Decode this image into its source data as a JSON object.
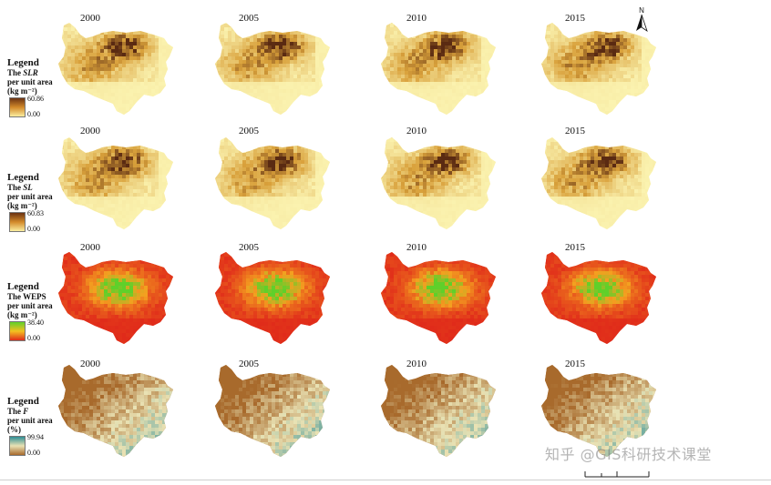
{
  "figure": {
    "rows": [
      {
        "id": "slr",
        "legend": {
          "title": "Legend",
          "var_prefix": "The ",
          "var_italic": "SLR",
          "line2": "per unit area",
          "unit": "(kg m⁻²)",
          "max": "60.86",
          "min": "0.00"
        },
        "years": [
          "2000",
          "2005",
          "2010",
          "2015"
        ],
        "colors": {
          "low": "#fbf3b0",
          "mid": "#d9a13b",
          "high": "#5a2a12"
        }
      },
      {
        "id": "sl",
        "legend": {
          "title": "Legend",
          "var_prefix": "The ",
          "var_italic": "SL",
          "line2": "per unit area",
          "unit": "(kg m⁻²)",
          "max": "60.83",
          "min": "0.00"
        },
        "years": [
          "2000",
          "2005",
          "2010",
          "2015"
        ],
        "colors": {
          "low": "#fbf3b0",
          "mid": "#d9a13b",
          "high": "#5a2a12"
        }
      },
      {
        "id": "weps",
        "legend": {
          "title": "Legend",
          "var_prefix": "The WEPS",
          "var_italic": "",
          "line2": "per unit area",
          "unit": "(kg m⁻²)",
          "max": "38.40",
          "min": "0.00"
        },
        "years": [
          "2000",
          "2005",
          "2010",
          "2015"
        ],
        "colors": {
          "low": "#e02a1a",
          "mid": "#f4a020",
          "high": "#5fd02a"
        }
      },
      {
        "id": "f",
        "legend": {
          "title": "Legend",
          "var_prefix": "The ",
          "var_italic": "F",
          "line2": "per unit area",
          "unit": "(%)",
          "max": "99.94",
          "min": "0.00"
        },
        "years": [
          "2000",
          "2005",
          "2010",
          "2015"
        ],
        "colors": {
          "low": "#a86a2c",
          "mid": "#e9e2b4",
          "high": "#2f8e96"
        }
      }
    ],
    "north_label": "N",
    "watermark": "知乎 @GIS科研技术课堂"
  }
}
